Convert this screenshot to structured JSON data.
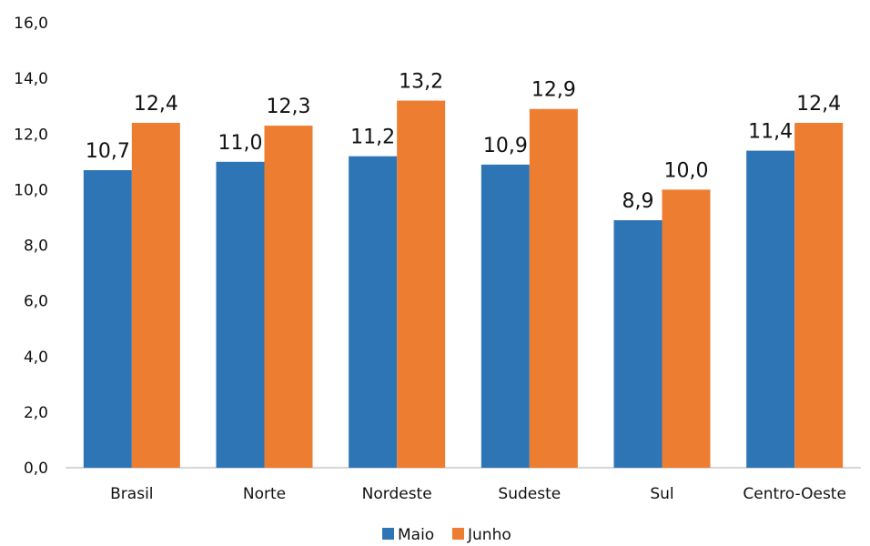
{
  "chart_data": {
    "type": "bar",
    "categories": [
      "Brasil",
      "Norte",
      "Nordeste",
      "Sudeste",
      "Sul",
      "Centro-Oeste"
    ],
    "series": [
      {
        "name": "Maio",
        "color": "#2E75B6",
        "values": [
          10.7,
          11.0,
          11.2,
          10.9,
          8.9,
          11.4
        ],
        "labels": [
          "10,7",
          "11,0",
          "11,2",
          "10,9",
          "8,9",
          "11,4"
        ]
      },
      {
        "name": "Junho",
        "color": "#ED7D31",
        "values": [
          12.4,
          12.3,
          13.2,
          12.9,
          10.0,
          12.4
        ],
        "labels": [
          "12,4",
          "12,3",
          "13,2",
          "12,9",
          "10,0",
          "12,4"
        ]
      }
    ],
    "ylim": [
      0,
      16
    ],
    "y_ticks": [
      0,
      2,
      4,
      6,
      8,
      10,
      12,
      14,
      16
    ],
    "y_tick_labels": [
      "0,0",
      "2,0",
      "4,0",
      "6,0",
      "8,0",
      "10,0",
      "12,0",
      "14,0",
      "16,0"
    ],
    "grid": false,
    "legend_position": "bottom-center",
    "title": "",
    "xlabel": "",
    "ylabel": ""
  }
}
